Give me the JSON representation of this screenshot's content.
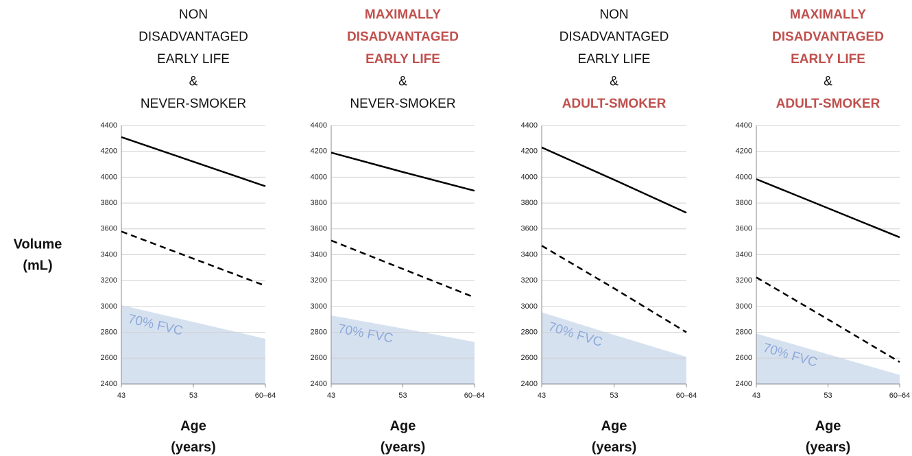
{
  "chart_data": [
    {
      "type": "line",
      "title_lines": [
        {
          "text": "NON",
          "color": "#111111",
          "bold": false
        },
        {
          "text": "DISADVANTAGED",
          "color": "#111111",
          "bold": false
        },
        {
          "text": "EARLY LIFE",
          "color": "#111111",
          "bold": false
        },
        {
          "text": "&",
          "color": "#111111",
          "bold": false
        },
        {
          "text": "NEVER-SMOKER",
          "color": "#111111",
          "bold": false
        }
      ],
      "ylabel": [
        "Volume",
        "(mL)"
      ],
      "xlabel": [
        "Age",
        "(years)"
      ],
      "categories": [
        "43",
        "53",
        "60–64"
      ],
      "series": [
        {
          "style": "solid",
          "color": "#000000",
          "values": [
            4310,
            4120,
            3930
          ]
        },
        {
          "style": "dashed",
          "color": "#000000",
          "values": [
            3580,
            3370,
            3160
          ]
        },
        {
          "style": "area",
          "name": "70% FVC",
          "color": "#d6e1f0",
          "label_color": "#8eaadb",
          "values": [
            3010,
            2880,
            2750
          ]
        }
      ],
      "ylim": [
        2400,
        4400
      ],
      "yticks": [
        2400,
        2600,
        2800,
        3000,
        3200,
        3400,
        3600,
        3800,
        4000,
        4200,
        4400
      ],
      "grid": true
    },
    {
      "type": "line",
      "title_lines": [
        {
          "text": "MAXIMALLY",
          "color": "#c0504d",
          "bold": true
        },
        {
          "text": "DISADVANTAGED",
          "color": "#c0504d",
          "bold": true
        },
        {
          "text": "EARLY LIFE",
          "color": "#c0504d",
          "bold": true
        },
        {
          "text": "&",
          "color": "#111111",
          "bold": false
        },
        {
          "text": "NEVER-SMOKER",
          "color": "#111111",
          "bold": false
        }
      ],
      "xlabel": [
        "Age",
        "(years)"
      ],
      "categories": [
        "43",
        "53",
        "60–64"
      ],
      "series": [
        {
          "style": "solid",
          "color": "#000000",
          "values": [
            4190,
            4040,
            3895
          ]
        },
        {
          "style": "dashed",
          "color": "#000000",
          "values": [
            3510,
            3290,
            3070
          ]
        },
        {
          "style": "area",
          "name": "70% FVC",
          "color": "#d6e1f0",
          "label_color": "#8eaadb",
          "values": [
            2930,
            2830,
            2725
          ]
        }
      ],
      "ylim": [
        2400,
        4400
      ],
      "yticks": [
        2400,
        2600,
        2800,
        3000,
        3200,
        3400,
        3600,
        3800,
        4000,
        4200,
        4400
      ],
      "grid": true
    },
    {
      "type": "line",
      "title_lines": [
        {
          "text": "NON",
          "color": "#111111",
          "bold": false
        },
        {
          "text": "DISADVANTAGED",
          "color": "#111111",
          "bold": false
        },
        {
          "text": "EARLY LIFE",
          "color": "#111111",
          "bold": false
        },
        {
          "text": "&",
          "color": "#111111",
          "bold": false
        },
        {
          "text": "ADULT-SMOKER",
          "color": "#c0504d",
          "bold": true
        }
      ],
      "xlabel": [
        "Age",
        "(years)"
      ],
      "categories": [
        "43",
        "53",
        "60–64"
      ],
      "series": [
        {
          "style": "solid",
          "color": "#000000",
          "values": [
            4230,
            3980,
            3725
          ]
        },
        {
          "style": "dashed",
          "color": "#000000",
          "values": [
            3470,
            3140,
            2800
          ]
        },
        {
          "style": "area",
          "name": "70% FVC",
          "color": "#d6e1f0",
          "label_color": "#8eaadb",
          "values": [
            2955,
            2780,
            2610
          ]
        }
      ],
      "ylim": [
        2400,
        4400
      ],
      "yticks": [
        2400,
        2600,
        2800,
        3000,
        3200,
        3400,
        3600,
        3800,
        4000,
        4200,
        4400
      ],
      "grid": true
    },
    {
      "type": "line",
      "title_lines": [
        {
          "text": "MAXIMALLY",
          "color": "#c0504d",
          "bold": true
        },
        {
          "text": "DISADVANTAGED",
          "color": "#c0504d",
          "bold": true
        },
        {
          "text": "EARLY LIFE",
          "color": "#c0504d",
          "bold": true
        },
        {
          "text": "&",
          "color": "#111111",
          "bold": false
        },
        {
          "text": "ADULT-SMOKER",
          "color": "#c0504d",
          "bold": true
        }
      ],
      "xlabel": [
        "Age",
        "(years)"
      ],
      "categories": [
        "43",
        "53",
        "60–64"
      ],
      "series": [
        {
          "style": "solid",
          "color": "#000000",
          "values": [
            3985,
            3760,
            3535
          ]
        },
        {
          "style": "dashed",
          "color": "#000000",
          "values": [
            3225,
            2900,
            2570
          ]
        },
        {
          "style": "area",
          "name": "70% FVC",
          "color": "#d6e1f0",
          "label_color": "#8eaadb",
          "values": [
            2790,
            2630,
            2470
          ]
        }
      ],
      "ylim": [
        2400,
        4400
      ],
      "yticks": [
        2400,
        2600,
        2800,
        3000,
        3200,
        3400,
        3600,
        3800,
        4000,
        4200,
        4400
      ],
      "grid": true
    }
  ]
}
